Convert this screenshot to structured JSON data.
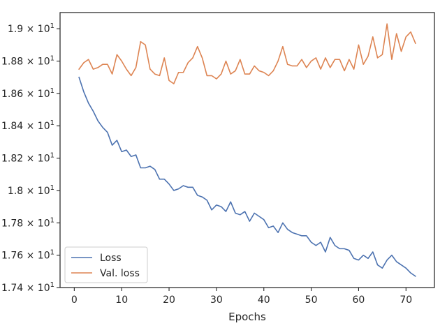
{
  "chart_data": {
    "type": "line",
    "title": "",
    "xlabel": "Epochs",
    "ylabel": "",
    "xlim": [
      -3,
      76
    ],
    "ylim": [
      17.4,
      19.1
    ],
    "x_ticks": [
      0,
      10,
      20,
      30,
      40,
      50,
      60,
      70
    ],
    "x_tick_labels": [
      "0",
      "10",
      "20",
      "30",
      "40",
      "50",
      "60",
      "70"
    ],
    "y_ticks": [
      17.4,
      17.6,
      17.8,
      18.0,
      18.2,
      18.4,
      18.6,
      18.8,
      19.0
    ],
    "y_tick_labels": [
      {
        "mantissa": "1.74",
        "exponent": "1"
      },
      {
        "mantissa": "1.76",
        "exponent": "1"
      },
      {
        "mantissa": "1.78",
        "exponent": "1"
      },
      {
        "mantissa": "1.8",
        "exponent": "1"
      },
      {
        "mantissa": "1.82",
        "exponent": "1"
      },
      {
        "mantissa": "1.84",
        "exponent": "1"
      },
      {
        "mantissa": "1.86",
        "exponent": "1"
      },
      {
        "mantissa": "1.88",
        "exponent": "1"
      },
      {
        "mantissa": "1.9",
        "exponent": "1"
      }
    ],
    "grid": false,
    "legend_position": "lower-left",
    "x": [
      1,
      2,
      3,
      4,
      5,
      6,
      7,
      8,
      9,
      10,
      11,
      12,
      13,
      14,
      15,
      16,
      17,
      18,
      19,
      20,
      21,
      22,
      23,
      24,
      25,
      26,
      27,
      28,
      29,
      30,
      31,
      32,
      33,
      34,
      35,
      36,
      37,
      38,
      39,
      40,
      41,
      42,
      43,
      44,
      45,
      46,
      47,
      48,
      49,
      50,
      51,
      52,
      53,
      54,
      55,
      56,
      57,
      58,
      59,
      60,
      61,
      62,
      63,
      64,
      65,
      66,
      67,
      68,
      69,
      70,
      71,
      72
    ],
    "series": [
      {
        "name": "Loss",
        "color": "#4c72b0",
        "values": [
          18.7,
          18.61,
          18.54,
          18.49,
          18.43,
          18.39,
          18.36,
          18.28,
          18.31,
          18.24,
          18.25,
          18.21,
          18.22,
          18.14,
          18.14,
          18.15,
          18.13,
          18.07,
          18.07,
          18.04,
          18.0,
          18.01,
          18.03,
          18.02,
          18.02,
          17.97,
          17.96,
          17.94,
          17.88,
          17.91,
          17.9,
          17.87,
          17.93,
          17.86,
          17.85,
          17.87,
          17.81,
          17.86,
          17.84,
          17.82,
          17.77,
          17.78,
          17.74,
          17.8,
          17.76,
          17.74,
          17.73,
          17.72,
          17.72,
          17.68,
          17.66,
          17.68,
          17.62,
          17.71,
          17.66,
          17.64,
          17.64,
          17.63,
          17.58,
          17.57,
          17.6,
          17.58,
          17.62,
          17.54,
          17.52,
          17.57,
          17.6,
          17.56,
          17.54,
          17.52,
          17.49,
          17.47
        ]
      },
      {
        "name": "Val. loss",
        "color": "#dd8452",
        "values": [
          18.75,
          18.79,
          18.81,
          18.75,
          18.76,
          18.78,
          18.78,
          18.72,
          18.84,
          18.8,
          18.75,
          18.71,
          18.76,
          18.92,
          18.9,
          18.75,
          18.72,
          18.71,
          18.82,
          18.68,
          18.66,
          18.73,
          18.73,
          18.79,
          18.82,
          18.89,
          18.82,
          18.71,
          18.71,
          18.69,
          18.72,
          18.8,
          18.72,
          18.74,
          18.81,
          18.72,
          18.72,
          18.77,
          18.74,
          18.73,
          18.71,
          18.74,
          18.8,
          18.89,
          18.78,
          18.77,
          18.77,
          18.81,
          18.76,
          18.8,
          18.82,
          18.75,
          18.82,
          18.76,
          18.81,
          18.81,
          18.74,
          18.81,
          18.75,
          18.9,
          18.78,
          18.83,
          18.95,
          18.82,
          18.84,
          19.03,
          18.81,
          18.97,
          18.86,
          18.95,
          18.98,
          18.91
        ]
      }
    ]
  }
}
